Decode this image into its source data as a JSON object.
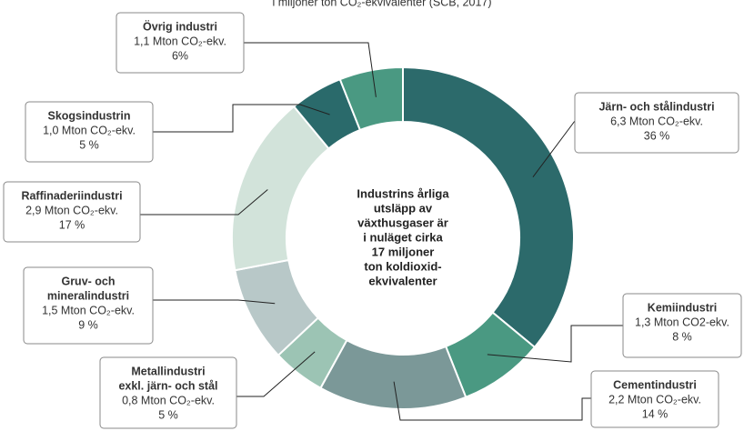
{
  "chart_data": {
    "type": "pie",
    "subtitle": "i miljoner ton CO₂-ekvivalenter (SCB, 2017)",
    "center_text": [
      "Industrins årliga",
      "utsläpp av",
      "växthusgaser är",
      "i nuläget cirka",
      "17 miljoner",
      "ton koldioxid-",
      "ekvivalenter"
    ],
    "categories": [
      [
        "Järn- och stålindustri"
      ],
      [
        "Kemiindustri"
      ],
      [
        "Cementindustri"
      ],
      [
        "Metallindustri",
        "exkl. järn- och stål"
      ],
      [
        "Gruv- och",
        "mineralindustri"
      ],
      [
        "Raffinaderiindustri"
      ],
      [
        "Skogsindustrin"
      ],
      [
        "Övrig industri"
      ]
    ],
    "amounts": [
      "6,3 Mton CO₂-ekv.",
      "1,3 Mton CO2-ekv.",
      "2,2 Mton CO₂-ekv.",
      "0,8 Mton CO₂-ekv.",
      "1,5 Mton CO₂-ekv.",
      "2,9 Mton CO₂-ekv.",
      "1,0 Mton CO₂-ekv.",
      "1,1 Mton CO₂-ekv."
    ],
    "values": [
      36,
      8,
      14,
      5,
      9,
      17,
      5,
      6
    ],
    "value_labels": [
      "36 %",
      "8 %",
      "14 %",
      "5 %",
      "9 %",
      "17 %",
      "5 %",
      "6%"
    ],
    "colors": [
      "#2c6a6b",
      "#4a9982",
      "#7b9898",
      "#9cc4b4",
      "#b8c8c8",
      "#d2e3da",
      "#2a6a6b",
      "#4a9982"
    ]
  }
}
